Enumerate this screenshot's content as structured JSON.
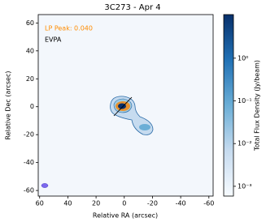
{
  "chart_data": {
    "type": "image",
    "title": "3C273 - Apr 4",
    "xlabel": "Relative RA (arcsec)",
    "ylabel": "Relative Dec (arcsec)",
    "colorbar_label": "Total Flux Density (Jy/beam)",
    "annotations": [
      {
        "text": "LP Peak: 0.040",
        "color": "#ff8c00"
      },
      {
        "text": "EVPA",
        "color": "#000000"
      }
    ],
    "xlim": [
      61,
      -63
    ],
    "xticks": [
      60,
      40,
      20,
      0,
      -20,
      -40,
      -60
    ],
    "ylim": [
      -64,
      66
    ],
    "yticks": [
      -60,
      -40,
      -20,
      0,
      20,
      40,
      60
    ],
    "zlim": [
      0.00059,
      10.5
    ],
    "zscale": "log",
    "zticks": [
      {
        "value": 1,
        "label": "10⁰"
      },
      {
        "value": 0.1,
        "label": "10⁻¹"
      },
      {
        "value": 0.01,
        "label": "10⁻²"
      },
      {
        "value": 0.001,
        "label": "10⁻³"
      }
    ],
    "colormap": [
      "#f7fbff",
      "#c6dbef",
      "#6baed6",
      "#2171b5",
      "#08306b"
    ]
  }
}
